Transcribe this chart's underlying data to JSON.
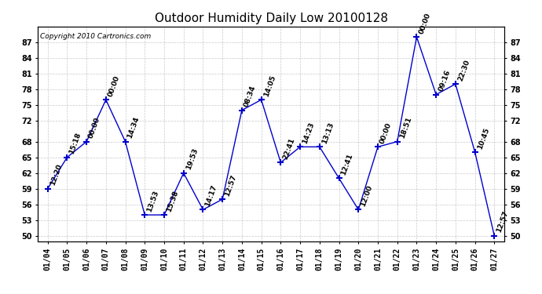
{
  "title": "Outdoor Humidity Daily Low 20100128",
  "copyright": "Copyright 2010 Cartronics.com",
  "x_labels": [
    "01/04",
    "01/05",
    "01/06",
    "01/07",
    "01/08",
    "01/09",
    "01/10",
    "01/11",
    "01/12",
    "01/13",
    "01/14",
    "01/15",
    "01/16",
    "01/17",
    "01/18",
    "01/19",
    "01/20",
    "01/21",
    "01/22",
    "01/23",
    "01/24",
    "01/25",
    "01/26",
    "01/27"
  ],
  "y_values": [
    59,
    65,
    68,
    76,
    68,
    54,
    54,
    62,
    55,
    57,
    74,
    76,
    64,
    67,
    67,
    61,
    55,
    67,
    68,
    88,
    77,
    79,
    66,
    50
  ],
  "point_labels": [
    "12:20",
    "15:18",
    "00:00",
    "00:00",
    "14:34",
    "13:53",
    "15:38",
    "19:53",
    "14:17",
    "12:57",
    "08:34",
    "14:05",
    "22:41",
    "14:23",
    "13:13",
    "12:41",
    "12:00",
    "00:00",
    "18:51",
    "00:00",
    "09:16",
    "22:30",
    "10:45",
    "12:57"
  ],
  "line_color": "#0000cc",
  "marker_color": "#0000cc",
  "background_color": "#ffffff",
  "grid_color": "#bbbbbb",
  "ylim": [
    49,
    90
  ],
  "ytick_positions": [
    50,
    53,
    56,
    59,
    62,
    65,
    68,
    72,
    75,
    78,
    81,
    84,
    87
  ],
  "ytick_labels": [
    "50",
    "53",
    "56",
    "59",
    "62",
    "65",
    "68",
    "72",
    "75",
    "78",
    "81",
    "84",
    "87"
  ],
  "title_fontsize": 11,
  "label_fontsize": 6.5,
  "tick_fontsize": 7,
  "copyright_fontsize": 6.5
}
